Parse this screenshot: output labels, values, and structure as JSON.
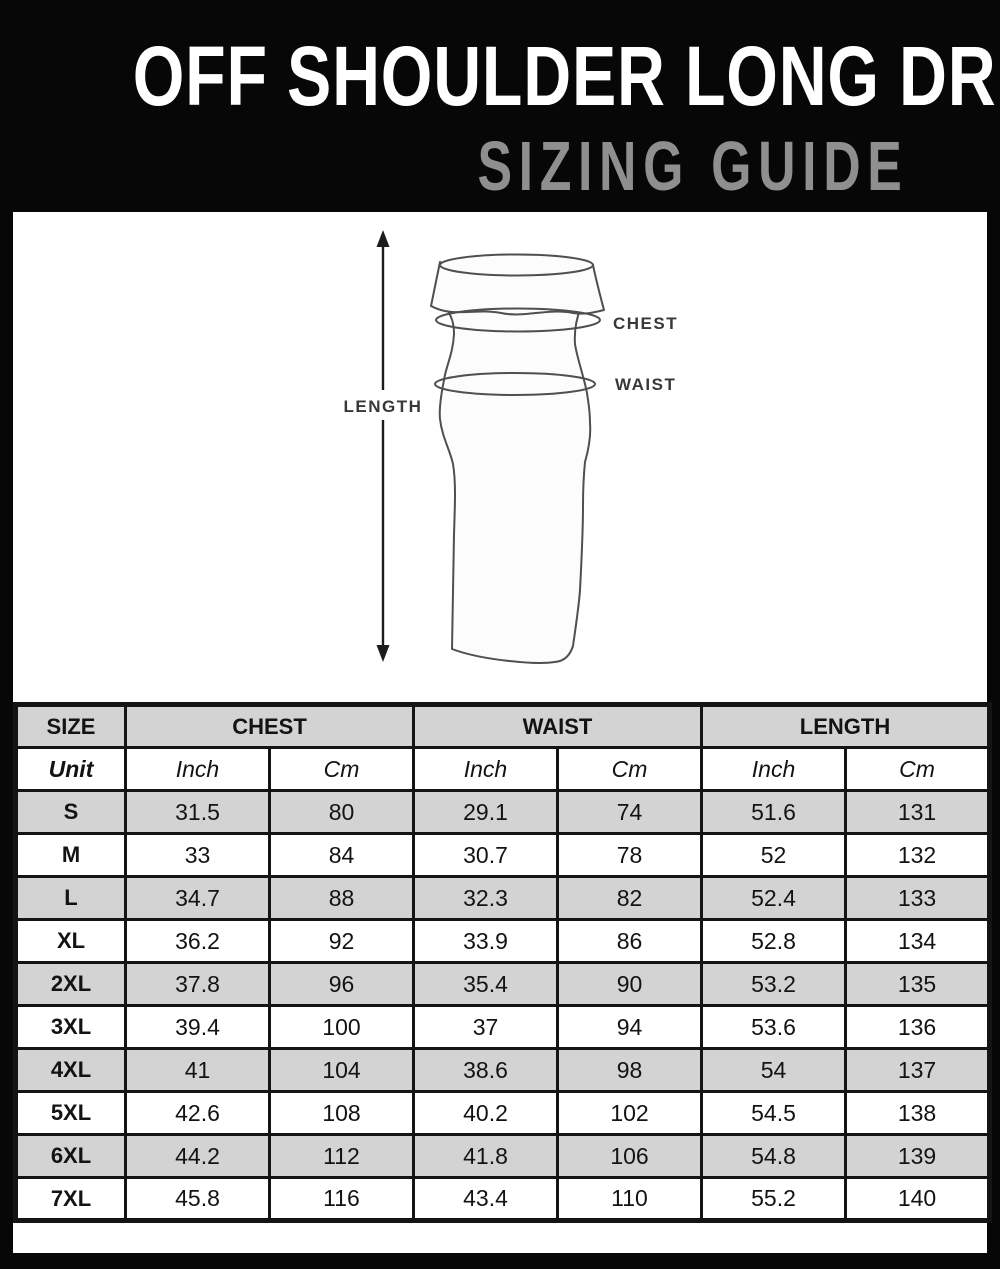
{
  "header": {
    "title": "OFF SHOULDER LONG DRESS",
    "subtitle": "SIZING GUIDE"
  },
  "diagram": {
    "length_label": "LENGTH",
    "chest_label": "CHEST",
    "waist_label": "WAIST"
  },
  "table": {
    "column_groups": [
      {
        "label": "SIZE",
        "span": 1
      },
      {
        "label": "CHEST",
        "span": 2
      },
      {
        "label": "WAIST",
        "span": 2
      },
      {
        "label": "LENGTH",
        "span": 2
      }
    ],
    "unit_row": [
      "Unit",
      "Inch",
      "Cm",
      "Inch",
      "Cm",
      "Inch",
      "Cm"
    ],
    "rows": [
      {
        "size": "S",
        "values": [
          "31.5",
          "80",
          "29.1",
          "74",
          "51.6",
          "131"
        ]
      },
      {
        "size": "M",
        "values": [
          "33",
          "84",
          "30.7",
          "78",
          "52",
          "132"
        ]
      },
      {
        "size": "L",
        "values": [
          "34.7",
          "88",
          "32.3",
          "82",
          "52.4",
          "133"
        ]
      },
      {
        "size": "XL",
        "values": [
          "36.2",
          "92",
          "33.9",
          "86",
          "52.8",
          "134"
        ]
      },
      {
        "size": "2XL",
        "values": [
          "37.8",
          "96",
          "35.4",
          "90",
          "53.2",
          "135"
        ]
      },
      {
        "size": "3XL",
        "values": [
          "39.4",
          "100",
          "37",
          "94",
          "53.6",
          "136"
        ]
      },
      {
        "size": "4XL",
        "values": [
          "41",
          "104",
          "38.6",
          "98",
          "54",
          "137"
        ]
      },
      {
        "size": "5XL",
        "values": [
          "42.6",
          "108",
          "40.2",
          "102",
          "54.5",
          "138"
        ]
      },
      {
        "size": "6XL",
        "values": [
          "44.2",
          "112",
          "41.8",
          "106",
          "54.8",
          "139"
        ]
      },
      {
        "size": "7XL",
        "values": [
          "45.8",
          "116",
          "43.4",
          "110",
          "55.2",
          "140"
        ]
      }
    ]
  },
  "colors": {
    "background": "#070707",
    "panel": "#ffffff",
    "title_color": "#ffffff",
    "subtitle_color": "#8f8f8f",
    "row_stripe": "#d3d3d3",
    "table_border": "#141414",
    "text_dark": "#131313",
    "sketch_line": "#4f4f4f"
  }
}
